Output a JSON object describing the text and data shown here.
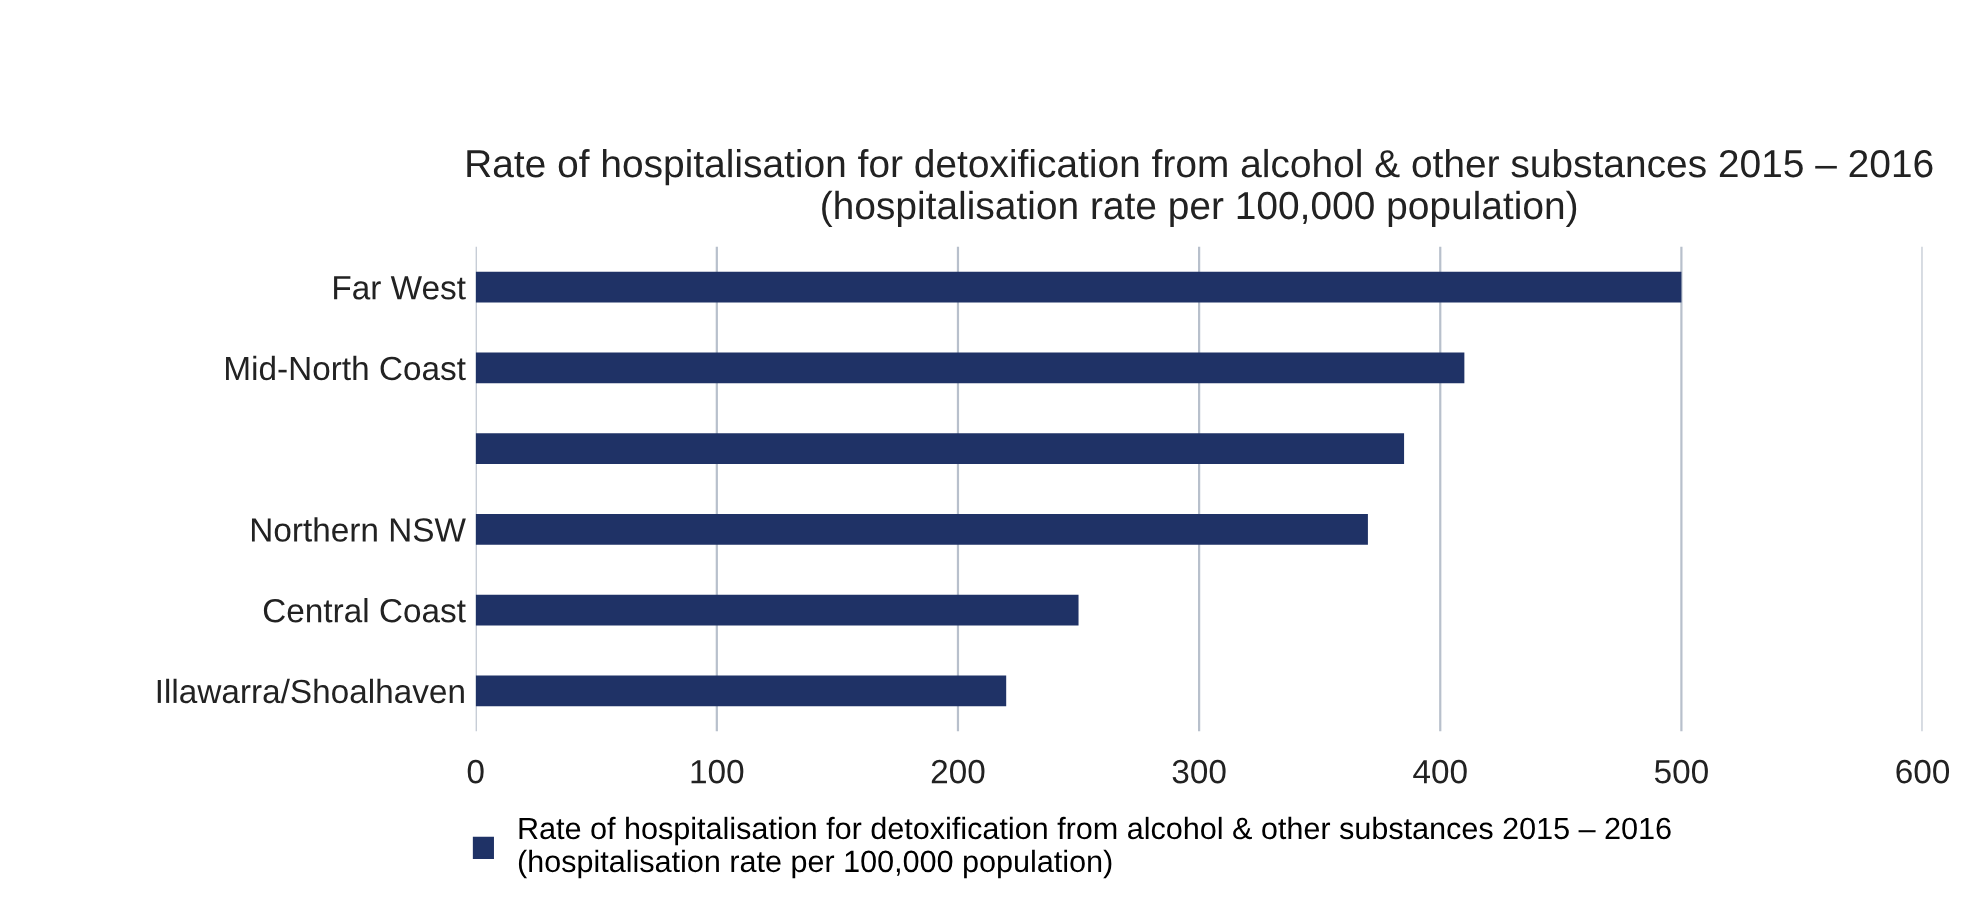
{
  "chart_data": {
    "type": "bar",
    "orientation": "horizontal",
    "title": "Rate of hospitalisation for detoxification from alcohol & other substances 2015 – 2016\n(hospitalisation rate per 100,000 population)",
    "categories": [
      "Far West",
      "Mid-North Coast",
      null,
      "Northern NSW",
      "Central Coast",
      "Illawarra/Shoalhaven"
    ],
    "series": [
      {
        "name": "Rate of hospitalisation for detoxification from alcohol & other substances 2015 – 2016\n(hospitalisation rate per 100,000 population)",
        "color": "#1f3266",
        "values": [
          500,
          410,
          385,
          370,
          250,
          220
        ]
      }
    ],
    "xlim": [
      0,
      600
    ],
    "xticks": [
      0,
      100,
      200,
      300,
      400,
      500,
      600
    ],
    "grid": "x",
    "legend": "bottom"
  }
}
